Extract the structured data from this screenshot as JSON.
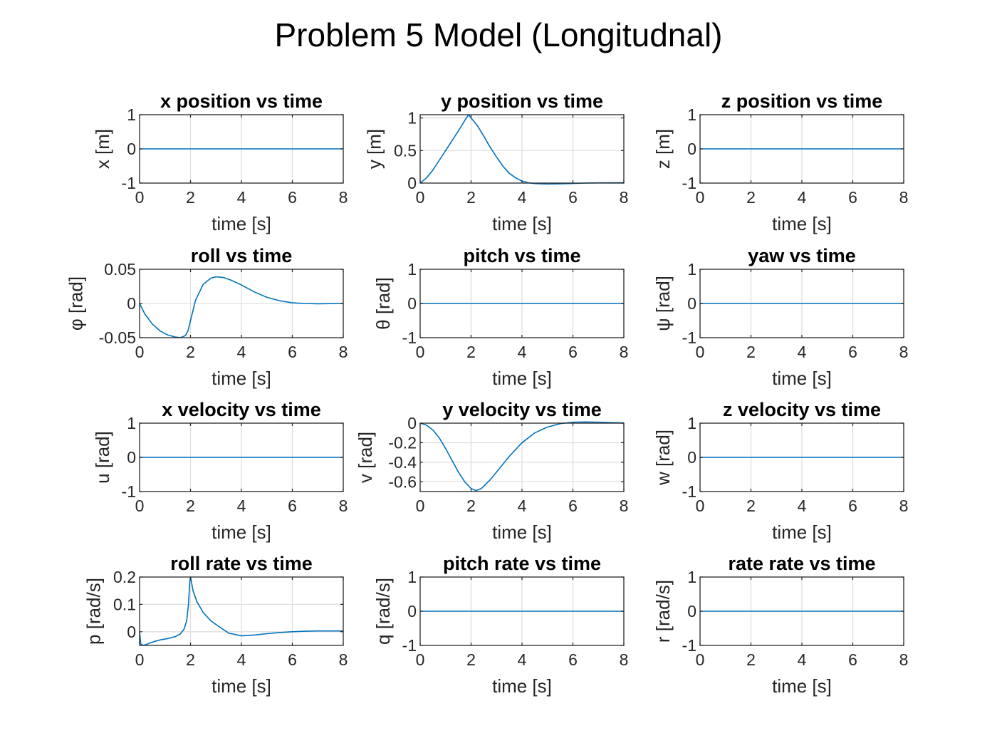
{
  "figure_title": "Problem 5 Model (Longitudnal)",
  "colors": {
    "line": "#0072BD",
    "axes": "#262626",
    "grid": "#dfdfdf",
    "background": "#ffffff"
  },
  "chart_data": [
    {
      "type": "line",
      "title": "x position vs time",
      "xlabel": "time [s]",
      "ylabel": "x [m]",
      "xlim": [
        0,
        8
      ],
      "ylim": [
        -1,
        1
      ],
      "xticks": [
        0,
        2,
        4,
        6,
        8
      ],
      "yticks": [
        -1,
        0,
        1
      ],
      "yticklabels": [
        "-1",
        "0",
        "1"
      ],
      "grid": true,
      "series": [
        {
          "x": [
            0,
            8
          ],
          "y": [
            0,
            0
          ]
        }
      ]
    },
    {
      "type": "line",
      "title": "y position vs time",
      "xlabel": "time [s]",
      "ylabel": "y [m]",
      "xlim": [
        0,
        8
      ],
      "ylim": [
        0,
        1.05
      ],
      "xticks": [
        0,
        2,
        4,
        6,
        8
      ],
      "yticks": [
        0,
        0.5,
        1
      ],
      "yticklabels": [
        "0",
        "0.5",
        "1"
      ],
      "grid": true,
      "series": [
        {
          "x": [
            0,
            0.25,
            0.5,
            0.75,
            1.0,
            1.25,
            1.5,
            1.75,
            1.9,
            2.0,
            2.25,
            2.5,
            2.75,
            3.0,
            3.25,
            3.5,
            3.75,
            4.0,
            4.25,
            4.5,
            5.0,
            5.5,
            6.0,
            6.5,
            7.0,
            7.5,
            8.0
          ],
          "y": [
            0,
            0.08,
            0.2,
            0.35,
            0.5,
            0.65,
            0.8,
            0.96,
            1.05,
            1.0,
            0.88,
            0.72,
            0.55,
            0.4,
            0.26,
            0.15,
            0.08,
            0.03,
            0.005,
            -0.008,
            -0.015,
            -0.012,
            -0.006,
            0.0,
            0.003,
            0.005,
            0.006
          ]
        }
      ]
    },
    {
      "type": "line",
      "title": "z position vs time",
      "xlabel": "time [s]",
      "ylabel": "z [m]",
      "xlim": [
        0,
        8
      ],
      "ylim": [
        -1,
        1
      ],
      "xticks": [
        0,
        2,
        4,
        6,
        8
      ],
      "yticks": [
        -1,
        0,
        1
      ],
      "yticklabels": [
        "-1",
        "0",
        "1"
      ],
      "grid": true,
      "series": [
        {
          "x": [
            0,
            8
          ],
          "y": [
            0,
            0
          ]
        }
      ]
    },
    {
      "type": "line",
      "title": "roll vs time",
      "xlabel": "time [s]",
      "ylabel": "φ [rad]",
      "xlim": [
        0,
        8
      ],
      "ylim": [
        -0.05,
        0.05
      ],
      "xticks": [
        0,
        2,
        4,
        6,
        8
      ],
      "yticks": [
        -0.05,
        0,
        0.05
      ],
      "yticklabels": [
        "-0.05",
        "0",
        "0.05"
      ],
      "grid": true,
      "series": [
        {
          "x": [
            0,
            0.2,
            0.5,
            0.8,
            1.1,
            1.4,
            1.6,
            1.8,
            1.9,
            2.0,
            2.2,
            2.5,
            2.8,
            3.0,
            3.3,
            3.6,
            4.0,
            4.5,
            5.0,
            5.5,
            6.0,
            6.5,
            7.0,
            8.0
          ],
          "y": [
            0,
            -0.015,
            -0.03,
            -0.04,
            -0.046,
            -0.049,
            -0.05,
            -0.047,
            -0.04,
            -0.025,
            0.005,
            0.028,
            0.037,
            0.039,
            0.038,
            0.034,
            0.027,
            0.017,
            0.009,
            0.004,
            0.001,
            0.0,
            -0.0005,
            0.0
          ]
        }
      ]
    },
    {
      "type": "line",
      "title": "pitch vs time",
      "xlabel": "time [s]",
      "ylabel": "θ [rad]",
      "xlim": [
        0,
        8
      ],
      "ylim": [
        -1,
        1
      ],
      "xticks": [
        0,
        2,
        4,
        6,
        8
      ],
      "yticks": [
        -1,
        0,
        1
      ],
      "yticklabels": [
        "-1",
        "0",
        "1"
      ],
      "grid": true,
      "series": [
        {
          "x": [
            0,
            8
          ],
          "y": [
            0,
            0
          ]
        }
      ]
    },
    {
      "type": "line",
      "title": "yaw vs time",
      "xlabel": "time [s]",
      "ylabel": "ψ [rad]",
      "xlim": [
        0,
        8
      ],
      "ylim": [
        -1,
        1
      ],
      "xticks": [
        0,
        2,
        4,
        6,
        8
      ],
      "yticks": [
        -1,
        0,
        1
      ],
      "yticklabels": [
        "-1",
        "0",
        "1"
      ],
      "grid": true,
      "series": [
        {
          "x": [
            0,
            8
          ],
          "y": [
            0,
            0
          ]
        }
      ]
    },
    {
      "type": "line",
      "title": "x velocity vs time",
      "xlabel": "time [s]",
      "ylabel": "u [rad]",
      "xlim": [
        0,
        8
      ],
      "ylim": [
        -1,
        1
      ],
      "xticks": [
        0,
        2,
        4,
        6,
        8
      ],
      "yticks": [
        -1,
        0,
        1
      ],
      "yticklabels": [
        "-1",
        "0",
        "1"
      ],
      "grid": true,
      "series": [
        {
          "x": [
            0,
            8
          ],
          "y": [
            0,
            0
          ]
        }
      ]
    },
    {
      "type": "line",
      "title": "y velocity vs time",
      "xlabel": "time [s]",
      "ylabel": "v [rad]",
      "xlim": [
        0,
        8
      ],
      "ylim": [
        -0.7,
        0
      ],
      "xticks": [
        0,
        2,
        4,
        6,
        8
      ],
      "yticks": [
        -0.6,
        -0.4,
        -0.2,
        0
      ],
      "yticklabels": [
        "-0.6",
        "-0.4",
        "-0.2",
        "0"
      ],
      "grid": true,
      "series": [
        {
          "x": [
            0,
            0.25,
            0.5,
            0.75,
            1.0,
            1.25,
            1.5,
            1.75,
            2.0,
            2.2,
            2.4,
            2.75,
            3.0,
            3.5,
            4.0,
            4.5,
            5.0,
            5.5,
            6.0,
            6.5,
            7.0,
            7.5,
            8.0
          ],
          "y": [
            0,
            -0.02,
            -0.07,
            -0.15,
            -0.26,
            -0.38,
            -0.5,
            -0.6,
            -0.67,
            -0.69,
            -0.67,
            -0.58,
            -0.5,
            -0.34,
            -0.2,
            -0.1,
            -0.04,
            -0.005,
            0.01,
            0.012,
            0.01,
            0.006,
            0.003
          ]
        }
      ]
    },
    {
      "type": "line",
      "title": "z velocity vs time",
      "xlabel": "time [s]",
      "ylabel": "w [rad]",
      "xlim": [
        0,
        8
      ],
      "ylim": [
        -1,
        1
      ],
      "xticks": [
        0,
        2,
        4,
        6,
        8
      ],
      "yticks": [
        -1,
        0,
        1
      ],
      "yticklabels": [
        "-1",
        "0",
        "1"
      ],
      "grid": true,
      "series": [
        {
          "x": [
            0,
            8
          ],
          "y": [
            0,
            0
          ]
        }
      ]
    },
    {
      "type": "line",
      "title": "roll rate vs time",
      "xlabel": "time [s]",
      "ylabel": "p [rad/s]",
      "xlim": [
        0,
        8
      ],
      "ylim": [
        -0.05,
        0.2
      ],
      "xticks": [
        0,
        2,
        4,
        6,
        8
      ],
      "yticks": [
        0,
        0.1,
        0.2
      ],
      "yticklabels": [
        "0",
        "0.1",
        "0.2"
      ],
      "grid": true,
      "series": [
        {
          "x": [
            0,
            0.05,
            0.15,
            0.3,
            0.5,
            0.8,
            1.1,
            1.4,
            1.6,
            1.75,
            1.85,
            1.92,
            1.97,
            2.0,
            2.1,
            2.25,
            2.5,
            2.8,
            3.1,
            3.5,
            4.0,
            4.5,
            5.0,
            5.5,
            6.0,
            6.5,
            7.0,
            8.0
          ],
          "y": [
            0,
            -0.045,
            -0.05,
            -0.045,
            -0.038,
            -0.03,
            -0.025,
            -0.018,
            -0.008,
            0.01,
            0.04,
            0.1,
            0.18,
            0.2,
            0.15,
            0.11,
            0.07,
            0.04,
            0.02,
            -0.005,
            -0.015,
            -0.012,
            -0.007,
            -0.003,
            0.0,
            0.002,
            0.003,
            0.003
          ]
        }
      ]
    },
    {
      "type": "line",
      "title": "pitch rate vs time",
      "xlabel": "time [s]",
      "ylabel": "q [rad/s]",
      "xlim": [
        0,
        8
      ],
      "ylim": [
        -1,
        1
      ],
      "xticks": [
        0,
        2,
        4,
        6,
        8
      ],
      "yticks": [
        -1,
        0,
        1
      ],
      "yticklabels": [
        "-1",
        "0",
        "1"
      ],
      "grid": true,
      "series": [
        {
          "x": [
            0,
            8
          ],
          "y": [
            0,
            0
          ]
        }
      ]
    },
    {
      "type": "line",
      "title": "rate rate vs time",
      "xlabel": "time [s]",
      "ylabel": "r [rad/s]",
      "xlim": [
        0,
        8
      ],
      "ylim": [
        -1,
        1
      ],
      "xticks": [
        0,
        2,
        4,
        6,
        8
      ],
      "yticks": [
        -1,
        0,
        1
      ],
      "yticklabels": [
        "-1",
        "0",
        "1"
      ],
      "grid": true,
      "series": [
        {
          "x": [
            0,
            8
          ],
          "y": [
            0,
            0
          ]
        }
      ]
    }
  ]
}
